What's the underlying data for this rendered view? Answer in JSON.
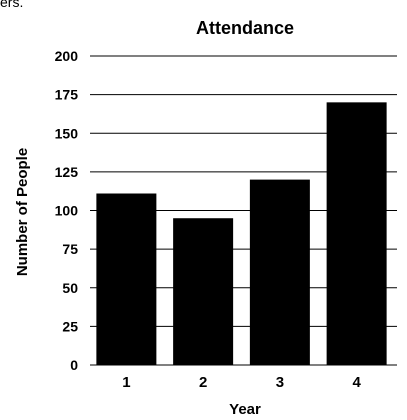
{
  "corner_fragment": "ers.",
  "chart_data": {
    "type": "bar",
    "title": "Attendance",
    "xlabel": "Year",
    "ylabel": "Number of People",
    "categories": [
      "1",
      "2",
      "3",
      "4"
    ],
    "values": [
      111,
      95,
      120,
      170
    ],
    "ylim": [
      0,
      200
    ],
    "yticks": [
      0,
      25,
      50,
      75,
      100,
      125,
      150,
      175,
      200
    ],
    "grid": "horizontal",
    "bar_color": "#000000"
  }
}
